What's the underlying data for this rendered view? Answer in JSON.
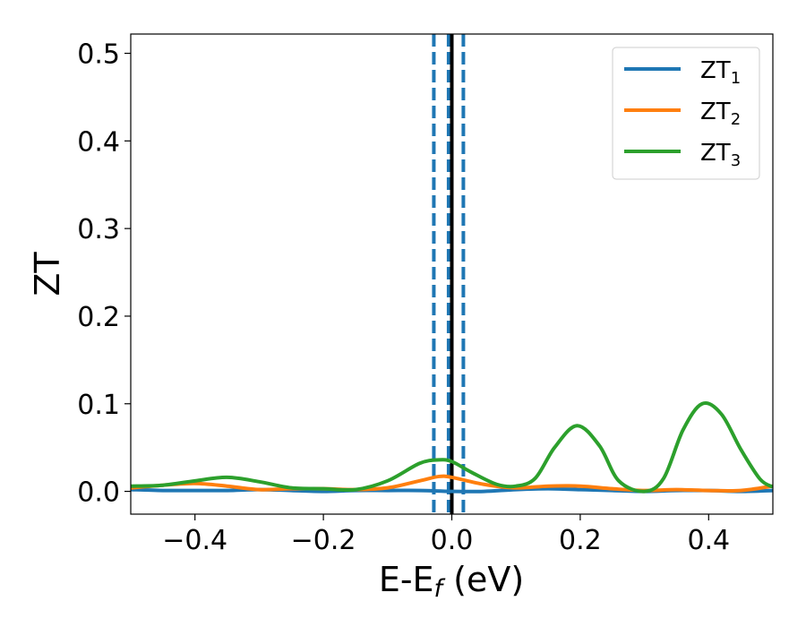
{
  "chart_data": {
    "type": "line",
    "xlabel": "E-E",
    "xlabel_sub": "f",
    "xlabel_unit": " (eV)",
    "ylabel": "ZT",
    "xlim": [
      -0.5,
      0.5
    ],
    "ylim": [
      -0.026,
      0.522
    ],
    "xticks": [
      -0.4,
      -0.2,
      0.0,
      0.2,
      0.4
    ],
    "xtick_labels": [
      "−0.4",
      "−0.2",
      "0.0",
      "0.2",
      "0.4"
    ],
    "yticks": [
      0.0,
      0.1,
      0.2,
      0.3,
      0.4,
      0.5
    ],
    "ytick_labels": [
      "0.0",
      "0.1",
      "0.2",
      "0.3",
      "0.4",
      "0.5"
    ],
    "legend_position": "top-right",
    "vertical_lines": [
      {
        "x": -0.028,
        "style": "dashed",
        "color": "#1f77b4"
      },
      {
        "x": -0.005,
        "style": "dashed",
        "color": "#1f77b4"
      },
      {
        "x": 0.018,
        "style": "dashed",
        "color": "#1f77b4"
      },
      {
        "x": 0.0,
        "style": "solid",
        "color": "#000000"
      }
    ],
    "series": [
      {
        "name": "ZT",
        "sub": "1",
        "color": "#1f77b4",
        "x": [
          -0.5,
          -0.45,
          -0.4,
          -0.35,
          -0.3,
          -0.25,
          -0.2,
          -0.15,
          -0.1,
          -0.05,
          0.0,
          0.05,
          0.1,
          0.15,
          0.2,
          0.25,
          0.3,
          0.35,
          0.4,
          0.45,
          0.5
        ],
        "y": [
          0.002,
          0.001,
          0.001,
          0.001,
          0.002,
          0.001,
          0.0,
          0.001,
          0.001,
          0.001,
          0.0,
          0.0,
          0.002,
          0.003,
          0.002,
          0.001,
          0.0,
          0.001,
          0.001,
          0.0,
          0.001
        ]
      },
      {
        "name": "ZT",
        "sub": "2",
        "color": "#ff7f0e",
        "x": [
          -0.5,
          -0.45,
          -0.4,
          -0.35,
          -0.3,
          -0.25,
          -0.2,
          -0.15,
          -0.1,
          -0.05,
          -0.02,
          0.0,
          0.05,
          0.1,
          0.15,
          0.2,
          0.25,
          0.3,
          0.35,
          0.4,
          0.45,
          0.5
        ],
        "y": [
          0.004,
          0.007,
          0.009,
          0.006,
          0.002,
          0.003,
          0.003,
          0.002,
          0.004,
          0.012,
          0.017,
          0.016,
          0.008,
          0.004,
          0.006,
          0.006,
          0.003,
          0.001,
          0.002,
          0.001,
          0.001,
          0.006
        ]
      },
      {
        "name": "ZT",
        "sub": "3",
        "color": "#2ca02c",
        "x": [
          -0.5,
          -0.45,
          -0.4,
          -0.35,
          -0.3,
          -0.25,
          -0.2,
          -0.15,
          -0.1,
          -0.05,
          -0.02,
          0.0,
          0.03,
          0.07,
          0.1,
          0.13,
          0.16,
          0.195,
          0.23,
          0.26,
          0.3,
          0.33,
          0.36,
          0.39,
          0.42,
          0.45,
          0.48,
          0.5
        ],
        "y": [
          0.006,
          0.007,
          0.012,
          0.016,
          0.011,
          0.004,
          0.003,
          0.002,
          0.012,
          0.032,
          0.036,
          0.034,
          0.022,
          0.008,
          0.006,
          0.015,
          0.05,
          0.075,
          0.052,
          0.012,
          0.0,
          0.015,
          0.07,
          0.1,
          0.088,
          0.048,
          0.014,
          0.005
        ]
      }
    ]
  }
}
